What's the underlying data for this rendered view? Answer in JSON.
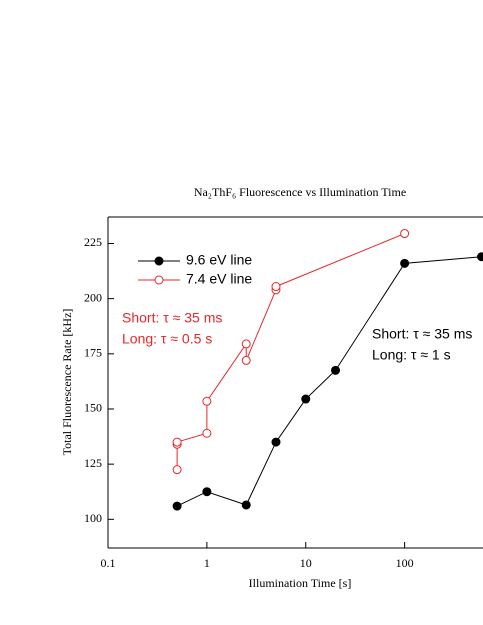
{
  "chart_data": {
    "type": "line",
    "title": "Na₂ThF₆ Fluorescence vs Illumination Time",
    "x_label": "Illumination Time [s]",
    "y_label": "Total Fluorescence Rate [kHz]",
    "x_scale": "log",
    "xlim": [
      0.1,
      1000
    ],
    "ylim": [
      87,
      237
    ],
    "xticks": [
      0.1,
      1,
      10,
      100
    ],
    "yticks": [
      100,
      125,
      150,
      175,
      200,
      225
    ],
    "legend_position": "upper left",
    "series": [
      {
        "name": "9.6 eV line",
        "color": "#000000",
        "marker": "filled",
        "x": [
          0.5,
          1,
          2.5,
          5,
          10,
          20,
          100,
          600
        ],
        "values": [
          106,
          112.5,
          106.5,
          135,
          154.5,
          167.5,
          216,
          219
        ]
      },
      {
        "name": "7.4 eV line",
        "color": "#e8262a",
        "marker": "open",
        "x": [
          0.5,
          0.5,
          0.5,
          1,
          1,
          2.5,
          2.5,
          5,
          5,
          100
        ],
        "values": [
          122.5,
          134,
          135,
          139,
          153.5,
          179.5,
          172,
          204,
          205.5,
          229.5
        ]
      }
    ],
    "annotations": [
      {
        "lines": [
          "Short: τ ≈ 35 ms",
          "Long: τ ≈ 0.5 s"
        ],
        "color": "#e8262a"
      },
      {
        "lines": [
          "Short: τ ≈ 35 ms",
          "Long: τ ≈ 1 s"
        ],
        "color": "#000000"
      }
    ]
  }
}
